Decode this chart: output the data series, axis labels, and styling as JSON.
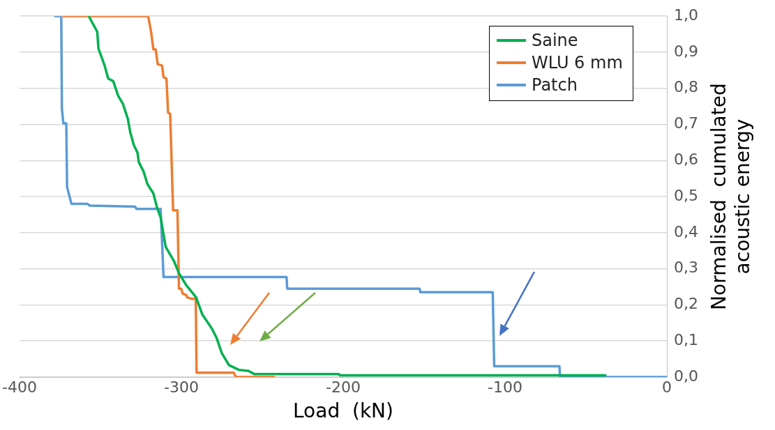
{
  "chart_data": {
    "type": "line",
    "xlabel": "Load  (kN)",
    "ylabel": "Normalised  cumulated acoustic energy",
    "xlim": [
      -400,
      0
    ],
    "xticks": [
      -400,
      -300,
      -200,
      -100,
      0
    ],
    "ylim": [
      0,
      1
    ],
    "yticks": [
      {
        "value": 0,
        "label": "0,0"
      },
      {
        "value": 0.1,
        "label": "0,1"
      },
      {
        "value": 0.2,
        "label": "0,2"
      },
      {
        "value": 0.3,
        "label": "0,3"
      },
      {
        "value": 0.4,
        "label": "0,4"
      },
      {
        "value": 0.5,
        "label": "0,5"
      },
      {
        "value": 0.6,
        "label": "0,6"
      },
      {
        "value": 0.7,
        "label": "0,7"
      },
      {
        "value": 0.8,
        "label": "0,8"
      },
      {
        "value": 0.9,
        "label": "0,9"
      },
      {
        "value": 1,
        "label": "1,0"
      }
    ],
    "grid": "y",
    "legend": "top right",
    "marker": "none",
    "line_style": "solid",
    "series": [
      {
        "name": "Saine",
        "color": "#00b050",
        "x": [
          -357.2,
          -352.0,
          -351.2,
          -347.4,
          -345.2,
          -342.1,
          -339.1,
          -336.1,
          -333.1,
          -331.6,
          -329.4,
          -327.1,
          -326.3,
          -323.3,
          -321.0,
          -317.3,
          -315.0,
          -312.8,
          -309.7,
          -304.5,
          -301.5,
          -296.9,
          -290.9,
          -287.1,
          -281.1,
          -278.1,
          -275.1,
          -270.6,
          -264.5,
          -258.5,
          -254.8,
          -202.7,
          -202.0,
          -38.0
        ],
        "values": [
          1.0,
          0.957,
          0.91,
          0.863,
          0.827,
          0.82,
          0.78,
          0.757,
          0.716,
          0.679,
          0.643,
          0.622,
          0.596,
          0.569,
          0.535,
          0.509,
          0.469,
          0.442,
          0.361,
          0.321,
          0.288,
          0.254,
          0.221,
          0.174,
          0.134,
          0.107,
          0.067,
          0.033,
          0.02,
          0.017,
          0.008,
          0.008,
          0.005,
          0.005
        ]
      },
      {
        "name": "WLU 6 mm",
        "color": "#ed7d31",
        "x": [
          -372.9,
          -320.5,
          -318.6,
          -317.3,
          -315.9,
          -314.6,
          -311.9,
          -311.0,
          -309.2,
          -308.2,
          -306.9,
          -305.1,
          -302.4,
          -301.5,
          -300.1,
          -299.2,
          -296.9,
          -296.5,
          -293.8,
          -291.1,
          -290.6,
          -267.6,
          -266.2,
          -242.7
        ],
        "values": [
          1.0,
          1.0,
          0.954,
          0.908,
          0.908,
          0.867,
          0.863,
          0.831,
          0.827,
          0.733,
          0.729,
          0.462,
          0.462,
          0.245,
          0.245,
          0.231,
          0.227,
          0.221,
          0.217,
          0.217,
          0.012,
          0.012,
          0.0,
          0.0
        ]
      },
      {
        "name": "Patch",
        "color": "#5b9bd5",
        "x": [
          -377.9,
          -374.2,
          -373.8,
          -372.9,
          -371.1,
          -370.6,
          -367.9,
          -358.0,
          -356.6,
          -328.6,
          -327.7,
          -312.8,
          -311.0,
          -235.0,
          -234.6,
          -152.8,
          -152.3,
          -107.6,
          -106.7,
          -66.4,
          -66.0,
          0
        ],
        "values": [
          1.0,
          1.0,
          0.743,
          0.703,
          0.703,
          0.526,
          0.48,
          0.48,
          0.475,
          0.472,
          0.466,
          0.466,
          0.277,
          0.277,
          0.245,
          0.245,
          0.235,
          0.235,
          0.03,
          0.03,
          0.0,
          0.0
        ]
      }
    ]
  }
}
